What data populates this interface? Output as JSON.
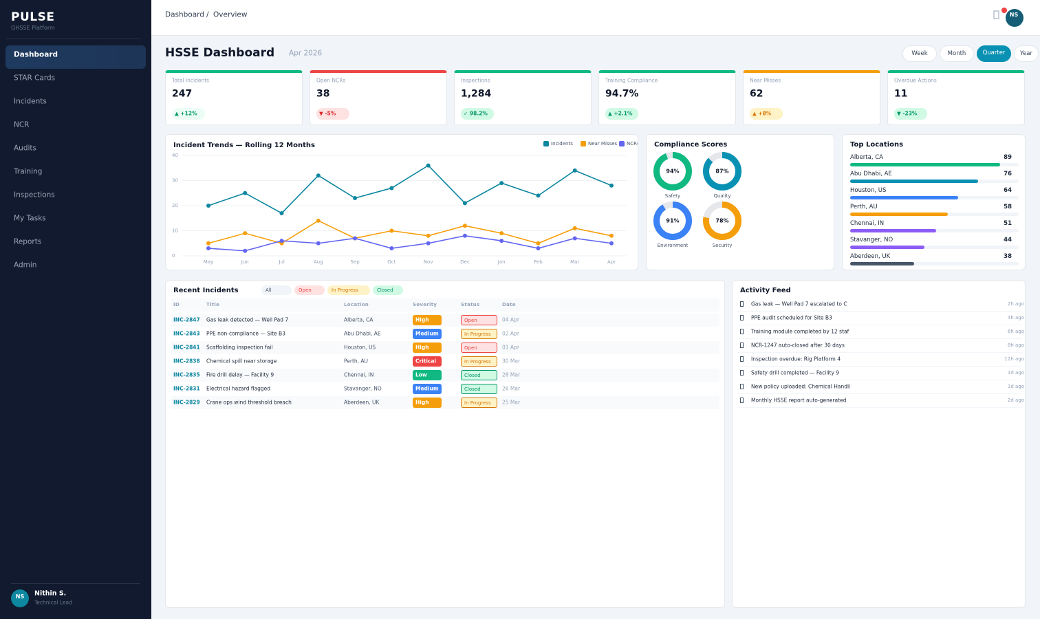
{
  "sidebar": {
    "brand": "PULSE",
    "subtitle": "QHSSE Platform",
    "nav": [
      "Dashboard",
      "STAR Cards",
      "Incidents",
      "NCR",
      "Audits",
      "Training",
      "Inspections",
      "My Tasks",
      "Reports",
      "Admin"
    ],
    "active_index": 0,
    "user": {
      "initials": "NS",
      "name": "Nithin S.",
      "role": "Technical Lead"
    }
  },
  "topbar": {
    "breadcrumb": [
      "Dashboard",
      "/",
      "Overview"
    ],
    "initials": "NS"
  },
  "header": {
    "title": "HSSE Dashboard",
    "period": "Apr 2026",
    "ranges": [
      "Week",
      "Month",
      "Quarter",
      "Year"
    ],
    "active_index": 2
  },
  "kpis": [
    {
      "label": "Total Incidents",
      "value": "247",
      "delta": "▲ +12%",
      "color": "#10b981",
      "delta_color": "#059669",
      "delta_bg": "#ecfdf5"
    },
    {
      "label": "Open NCRs",
      "value": "38",
      "delta": "▼ -5%",
      "color": "#ef4444",
      "delta_color": "#dc2626",
      "delta_bg": "#fee2e2"
    },
    {
      "label": "Inspections",
      "value": "1,284",
      "delta": "✓ 98.2%",
      "color": "#10b981",
      "delta_color": "#059669",
      "delta_bg": "#d1fae5"
    },
    {
      "label": "Training Compliance",
      "value": "94.7%",
      "delta": "▲ +2.1%",
      "color": "#10b981",
      "delta_color": "#059669",
      "delta_bg": "#d1fae5"
    },
    {
      "label": "Near Misses",
      "value": "62",
      "delta": "▲ +8%",
      "color": "#f59e0b",
      "delta_color": "#d97706",
      "delta_bg": "#fef3c7"
    },
    {
      "label": "Overdue Actions",
      "value": "11",
      "delta": "▼ -23%",
      "color": "#10b981",
      "delta_color": "#059669",
      "delta_bg": "#d1fae5"
    }
  ],
  "chart_data": {
    "type": "line",
    "title": "Incident Trends — Rolling 12 Months",
    "categories": [
      "May",
      "Jun",
      "Jul",
      "Aug",
      "Sep",
      "Oct",
      "Nov",
      "Dec",
      "Jan",
      "Feb",
      "Mar",
      "Apr"
    ],
    "series": [
      {
        "name": "Incidents",
        "color": "#0e87a0",
        "values": [
          20,
          25,
          17,
          32,
          23,
          27,
          36,
          21,
          29,
          24,
          34,
          28
        ]
      },
      {
        "name": "Near Misses",
        "color": "#f59e0b",
        "values": [
          5,
          9,
          5,
          14,
          7,
          10,
          8,
          12,
          9,
          5,
          11,
          8
        ]
      },
      {
        "name": "NCRs",
        "color": "#6366f1",
        "values": [
          3,
          2,
          6,
          5,
          7,
          3,
          5,
          8,
          6,
          3,
          7,
          5
        ]
      }
    ],
    "ylim": [
      0,
      40
    ],
    "yticks": [
      0,
      10,
      20,
      30,
      40
    ],
    "grid": true
  },
  "compliance": {
    "title": "Compliance Scores",
    "lim": [
      0,
      100
    ],
    "items": [
      {
        "label": "Safety",
        "value": 94,
        "value_label": "94%",
        "color": "#10b981"
      },
      {
        "label": "Quality",
        "value": 87,
        "value_label": "87%",
        "color": "#0891b2"
      },
      {
        "label": "Environment",
        "value": 91,
        "value_label": "91%",
        "color": "#3b82f6"
      },
      {
        "label": "Security",
        "value": 78,
        "value_label": "78%",
        "color": "#f59e0b"
      }
    ]
  },
  "locations": {
    "title": "Top Locations",
    "xlim": [
      0,
      100
    ],
    "items": [
      {
        "name": "Alberta, CA",
        "value": 89,
        "color": "#10b981"
      },
      {
        "name": "Abu Dhabi, AE",
        "value": 76,
        "color": "#0891b2"
      },
      {
        "name": "Houston, US",
        "value": 64,
        "color": "#3b82f6"
      },
      {
        "name": "Perth, AU",
        "value": 58,
        "color": "#f59e0b"
      },
      {
        "name": "Chennai, IN",
        "value": 51,
        "color": "#8b5cf6"
      },
      {
        "name": "Stavanger, NO",
        "value": 44,
        "color": "#8b5cf6"
      },
      {
        "name": "Aberdeen, UK",
        "value": 38,
        "color": "#475569"
      }
    ]
  },
  "incidents_table": {
    "title": "Recent Incidents",
    "filters": [
      "All",
      "Open",
      "In Progress",
      "Closed"
    ],
    "columns": [
      "ID",
      "Title",
      "Location",
      "Severity",
      "Status",
      "Date"
    ],
    "rows": [
      [
        "INC-2847",
        "Gas leak detected — Well Pad 7",
        "Alberta, CA",
        "High",
        "Open",
        "04 Apr"
      ],
      [
        "INC-2843",
        "PPE non-compliance — Site B3",
        "Abu Dhabi, AE",
        "Medium",
        "In Progress",
        "02 Apr"
      ],
      [
        "INC-2841",
        "Scaffolding inspection fail",
        "Houston, US",
        "High",
        "Open",
        "01 Apr"
      ],
      [
        "INC-2838",
        "Chemical spill near storage",
        "Perth, AU",
        "Critical",
        "In Progress",
        "30 Mar"
      ],
      [
        "INC-2835",
        "Fire drill delay — Facility 9",
        "Chennai, IN",
        "Low",
        "Closed",
        "28 Mar"
      ],
      [
        "INC-2831",
        "Electrical hazard flagged",
        "Stavanger, NO",
        "Medium",
        "Closed",
        "26 Mar"
      ],
      [
        "INC-2829",
        "Crane ops wind threshold breach",
        "Aberdeen, UK",
        "High",
        "In Progress",
        "25 Mar"
      ]
    ],
    "severity_colors": {
      "High": "#f59e0b",
      "Medium": "#3b82f6",
      "Critical": "#ef4444",
      "Low": "#10b981"
    },
    "status_styles": {
      "Open": {
        "fg": "#ef4444",
        "bg": "#fee2e2"
      },
      "In Progress": {
        "fg": "#d97706",
        "bg": "#fef3c7"
      },
      "Closed": {
        "fg": "#059669",
        "bg": "#d1fae5"
      }
    }
  },
  "activity": {
    "title": "Activity Feed",
    "items": [
      {
        "text": "Gas leak — Well Pad 7 escalated to C",
        "time": "2h ago"
      },
      {
        "text": "PPE audit scheduled for Site B3",
        "time": "4h ago"
      },
      {
        "text": "Training module completed by 12 staf",
        "time": "6h ago"
      },
      {
        "text": "NCR-1247 auto-closed after 30 days",
        "time": "8h ago"
      },
      {
        "text": "Inspection overdue: Rig Platform 4",
        "time": "12h ago"
      },
      {
        "text": "Safety drill completed — Facility 9",
        "time": "1d ago"
      },
      {
        "text": "New policy uploaded: Chemical Handli",
        "time": "1d ago"
      },
      {
        "text": "Monthly HSSE report auto-generated",
        "time": "2d ago"
      }
    ]
  }
}
